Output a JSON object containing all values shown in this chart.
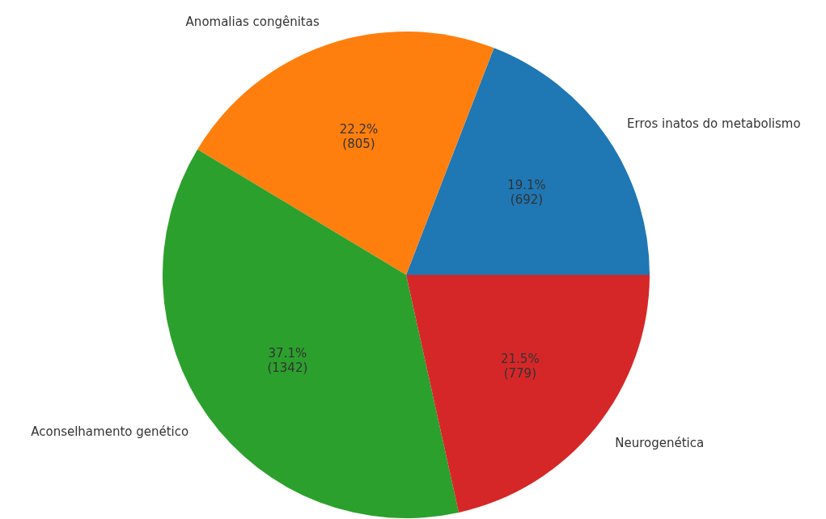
{
  "chart_data": {
    "type": "pie",
    "categories": [
      "Erros inatos do metabolismo",
      "Anomalias congênitas",
      "Aconselhamento genético",
      "Neurogenética"
    ],
    "values": [
      692,
      805,
      1342,
      779
    ],
    "colors": [
      "#1f77b4",
      "#ff7f0e",
      "#2ca02c",
      "#d62728"
    ],
    "value_labels": [
      "19.1%\n(692)",
      "22.2%\n(805)",
      "37.1%\n(1342)",
      "21.5%\n(779)"
    ]
  }
}
